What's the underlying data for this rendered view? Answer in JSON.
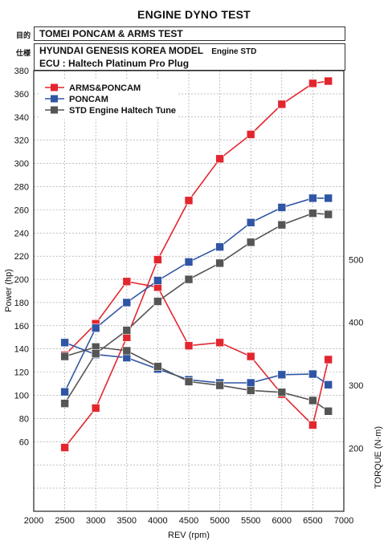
{
  "title": "ENGINE DYNO TEST",
  "info": {
    "purpose_label": "目的",
    "purpose_value": "TOMEI PONCAM & ARMS TEST",
    "spec_label": "仕様",
    "spec_line1": "HYUNDAI GENESIS KOREA MODEL",
    "spec_line1_sub": "Engine STD",
    "spec_line2": "ECU : Haltech Platinum Pro Plug"
  },
  "chart_data": {
    "type": "line",
    "xlabel": "REV (rpm)",
    "ylabel": "Power (hp)",
    "y2label": "TORQUE (N·m)",
    "xlim": [
      2000,
      7000
    ],
    "x_ticks": [
      2000,
      2500,
      3000,
      3500,
      4000,
      4500,
      5000,
      5500,
      6000,
      6500,
      7000
    ],
    "power_ylim": [
      0,
      380
    ],
    "power_tick_labels": [
      60,
      80,
      100,
      120,
      140,
      160,
      180,
      200,
      220,
      240,
      260,
      280,
      300,
      320,
      340,
      360,
      380
    ],
    "torque_ylim": [
      100,
      800
    ],
    "torque_tick_labels": [
      200,
      300,
      400,
      500
    ],
    "grid": true,
    "legend_position": "top-left",
    "x": [
      2500,
      3000,
      3500,
      4000,
      4500,
      5000,
      5500,
      6000,
      6500,
      6750
    ],
    "series": [
      {
        "name": "ARMS&PONCAM",
        "color": "#e3262e",
        "power": [
          55,
          89,
          150,
          217,
          268,
          304,
          325,
          351,
          369,
          371
        ],
        "torque": [
          348,
          398,
          465,
          456,
          363,
          368,
          346,
          286,
          237,
          341
        ]
      },
      {
        "name": "PONCAM",
        "color": "#2f55a4",
        "power": [
          103,
          158,
          180,
          199,
          215,
          228,
          249,
          262,
          270,
          270
        ],
        "torque": [
          368,
          349,
          344,
          326,
          309,
          304,
          304,
          317,
          318,
          301
        ]
      },
      {
        "name": "STD Engine Haltech Tune",
        "color": "#555555",
        "power": [
          93,
          136,
          156,
          181,
          200,
          214,
          232,
          247,
          257,
          256
        ],
        "torque": [
          346,
          361,
          355,
          330,
          306,
          300,
          292,
          289,
          276,
          259
        ]
      }
    ]
  }
}
